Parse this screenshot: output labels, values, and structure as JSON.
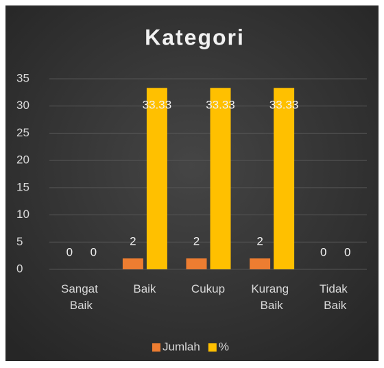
{
  "chart_data": {
    "type": "bar",
    "title": "Kategori",
    "categories": [
      "Sangat Baik",
      "Baik",
      "Cukup",
      "Kurang Baik",
      "Tidak Baik"
    ],
    "series": [
      {
        "name": "Jumlah",
        "color": "#ed7d31",
        "values": [
          0,
          2,
          2,
          2,
          0
        ]
      },
      {
        "name": "%",
        "color": "#ffc000",
        "values": [
          0,
          33.33,
          33.33,
          33.33,
          0
        ]
      }
    ],
    "ylim": [
      0,
      35
    ],
    "yticks": [
      0,
      5,
      10,
      15,
      20,
      25,
      30,
      35
    ],
    "grid": true,
    "legend": "bottom"
  }
}
